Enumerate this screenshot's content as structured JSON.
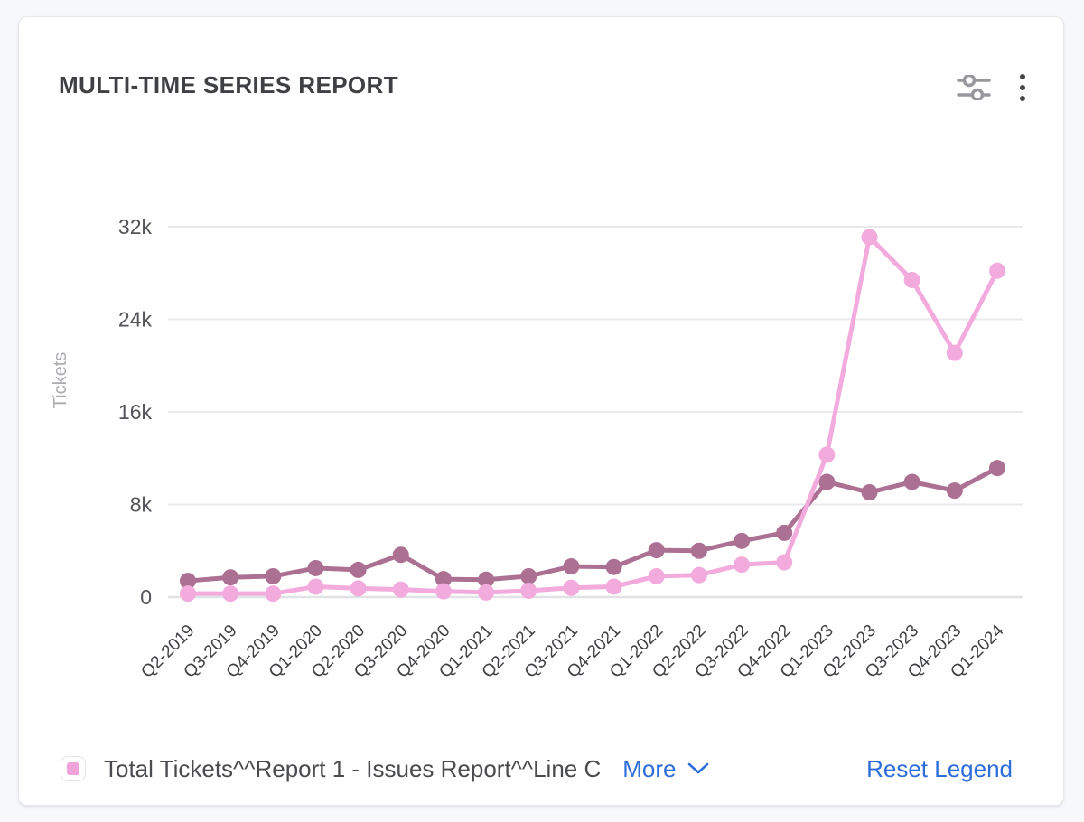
{
  "card": {
    "title": "MULTI-TIME SERIES REPORT"
  },
  "toolbar": {
    "settings_icon": "sliders-icon",
    "menu_icon": "kebab-menu-icon",
    "icon_color": "#97979e",
    "menu_dot_color": "#46464a"
  },
  "legend": {
    "item_label": "Total Tickets^^Report 1 - Issues Report^^Line C",
    "item_color": "#f0a2da",
    "more_label": "More",
    "reset_label": "Reset Legend",
    "link_color": "#2e6edb"
  },
  "chart_data": {
    "type": "line",
    "title": "MULTI-TIME SERIES REPORT",
    "xlabel": "",
    "ylabel": "Tickets",
    "categories": [
      "Q2-2019",
      "Q3-2019",
      "Q4-2019",
      "Q1-2020",
      "Q2-2020",
      "Q3-2020",
      "Q4-2020",
      "Q1-2021",
      "Q2-2021",
      "Q3-2021",
      "Q4-2021",
      "Q1-2022",
      "Q2-2022",
      "Q3-2022",
      "Q4-2022",
      "Q1-2023",
      "Q2-2023",
      "Q3-2023",
      "Q4-2023",
      "Q1-2024"
    ],
    "ylim": [
      0,
      32000
    ],
    "yticks": [
      0,
      8000,
      16000,
      24000,
      32000
    ],
    "ytick_labels": [
      "0",
      "8k",
      "16k",
      "24k",
      "32k"
    ],
    "grid": "horizontal",
    "legend_position": "bottom",
    "series": [
      {
        "name": "Total Tickets^^Report 1 - Issues Report^^Line C",
        "color": "#f3abde",
        "marker": "circle",
        "values": [
          300,
          300,
          300,
          900,
          750,
          650,
          500,
          400,
          550,
          800,
          900,
          1800,
          1900,
          2800,
          3000,
          12300,
          31100,
          27400,
          21100,
          28200
        ]
      },
      {
        "name": "",
        "color": "#ab7092",
        "marker": "circle",
        "values": [
          1400,
          1700,
          1800,
          2500,
          2350,
          3650,
          1550,
          1500,
          1800,
          2650,
          2600,
          4050,
          4000,
          4850,
          5550,
          9950,
          9050,
          9950,
          9200,
          11150
        ]
      }
    ]
  }
}
